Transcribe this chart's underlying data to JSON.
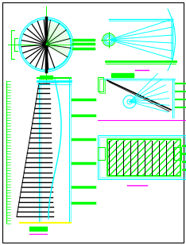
{
  "cyan": "#00ffff",
  "green": "#00ff00",
  "magenta": "#ff00ff",
  "yellow": "#ffff00",
  "black": "#000000",
  "white": "#ffffff"
}
